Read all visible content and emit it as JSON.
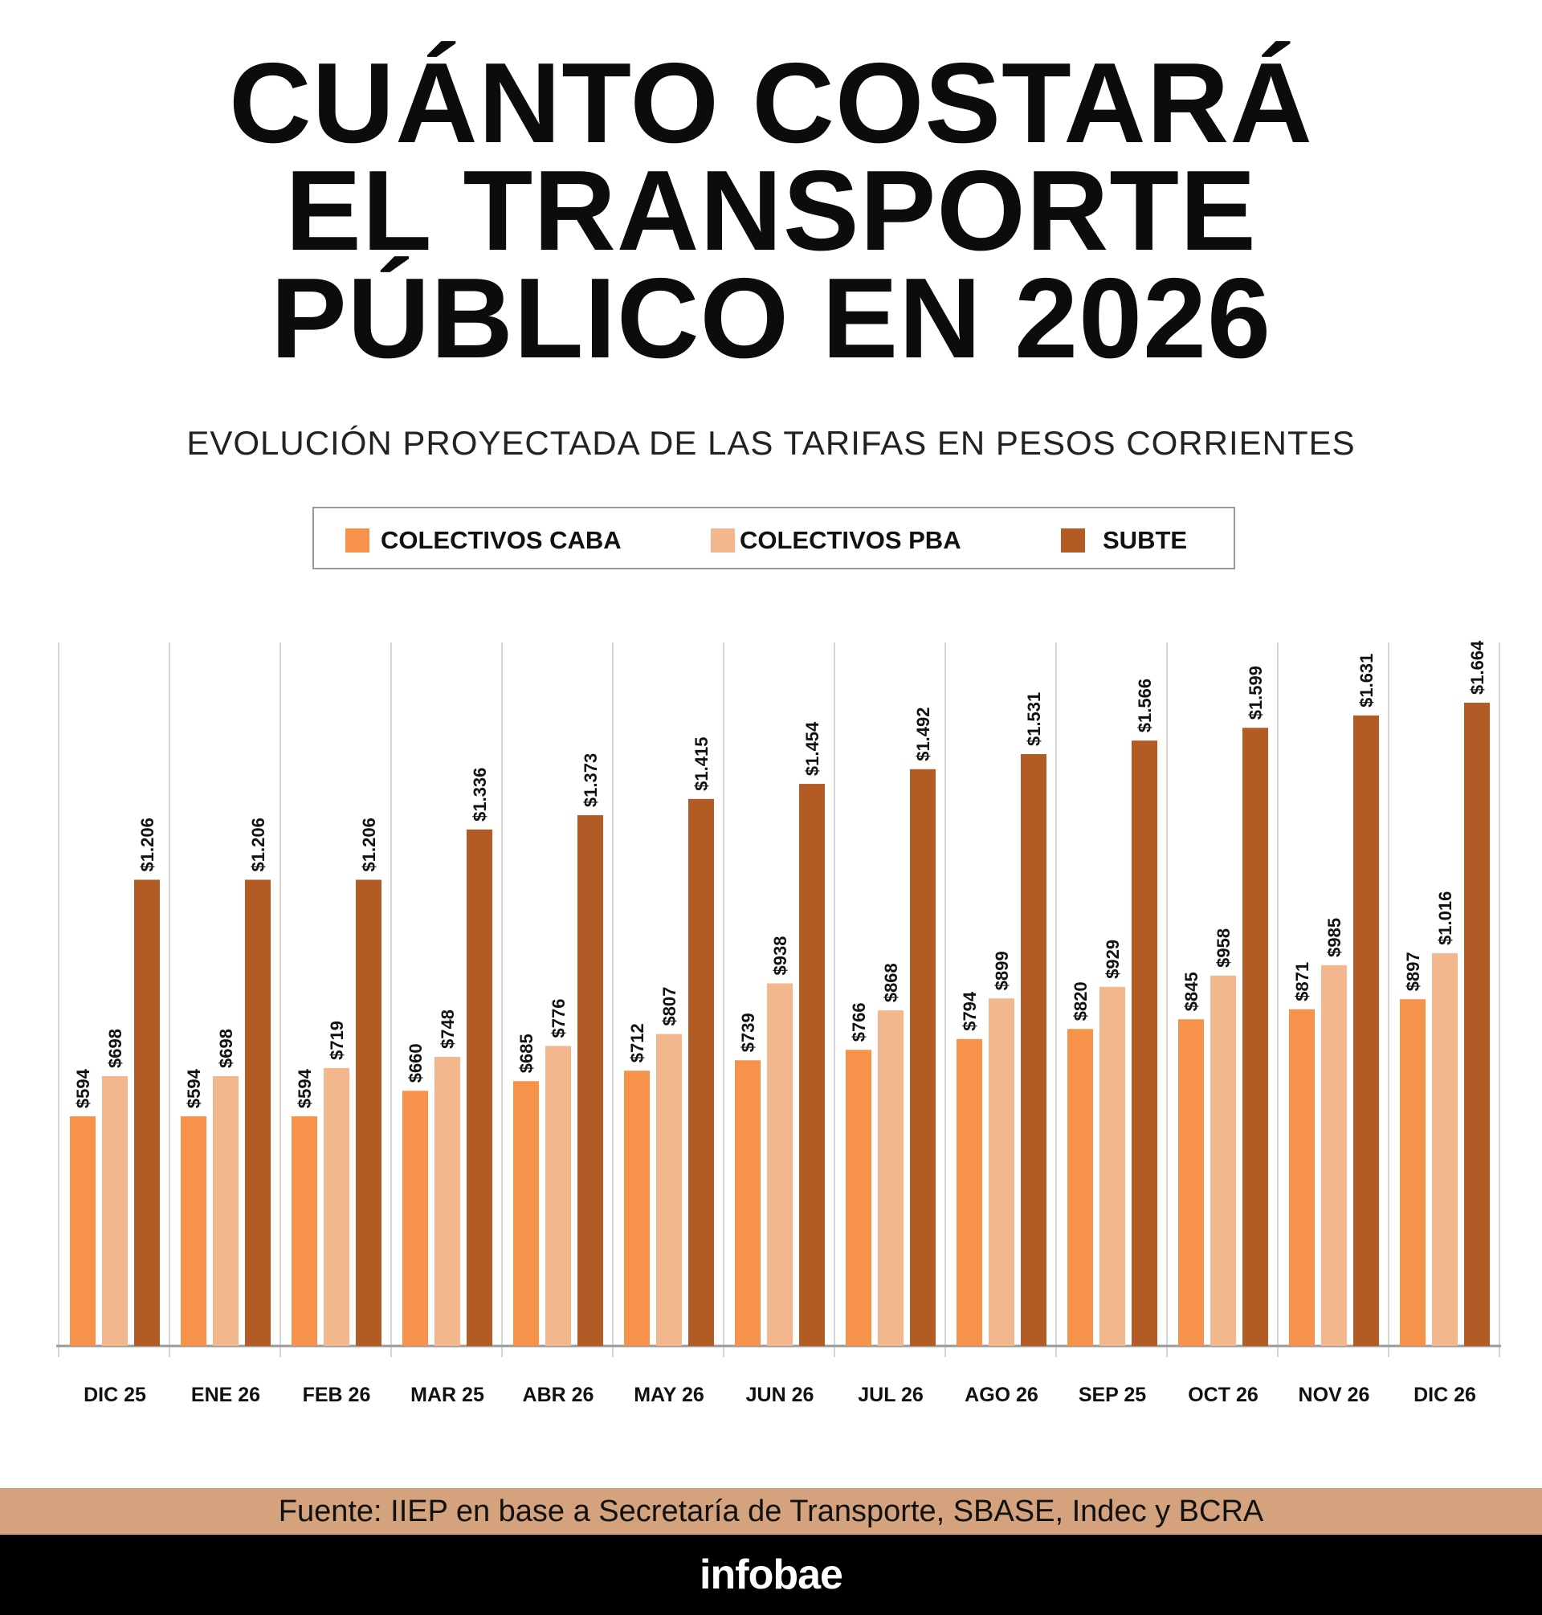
{
  "title_lines": [
    "CUÁNTO COSTARÁ",
    "EL TRANSPORTE",
    "PÚBLICO EN 2026"
  ],
  "subtitle": "EVOLUCIÓN PROYECTADA DE LAS TARIFAS EN PESOS CORRIENTES",
  "source": "Fuente:  IIEP en base a Secretaría de Transporte, SBASE, Indec y BCRA",
  "logo": "infobae",
  "colors": {
    "caba": "#f7924a",
    "pba": "#f2b78c",
    "subte": "#b25b24",
    "source_band": "#d4a37d"
  },
  "chart_data": {
    "type": "bar",
    "title": "CUÁNTO COSTARÁ EL TRANSPORTE PÚBLICO EN 2026",
    "subtitle": "EVOLUCIÓN PROYECTADA DE LAS TARIFAS EN PESOS CORRIENTES",
    "categories": [
      "DIC 25",
      "ENE 26",
      "FEB 26",
      "MAR 25",
      "ABR 26",
      "MAY 26",
      "JUN 26",
      "JUL 26",
      "AGO 26",
      "SEP 25",
      "OCT 26",
      "NOV 26",
      "DIC 26"
    ],
    "series": [
      {
        "name": "COLECTIVOS CABA",
        "values": [
          594,
          594,
          594,
          660,
          685,
          712,
          739,
          766,
          794,
          820,
          845,
          871,
          897
        ],
        "labels": [
          "$594",
          "$594",
          "$594",
          "$660",
          "$685",
          "$712",
          "$739",
          "$766",
          "$794",
          "$820",
          "$845",
          "$871",
          "$897"
        ]
      },
      {
        "name": "COLECTIVOS PBA",
        "values": [
          698,
          698,
          719,
          748,
          776,
          807,
          938,
          868,
          899,
          929,
          958,
          985,
          1016
        ],
        "labels": [
          "$698",
          "$698",
          "$719",
          "$748",
          "$776",
          "$807",
          "$938",
          "$868",
          "$899",
          "$929",
          "$958",
          "$985",
          "$1.016"
        ]
      },
      {
        "name": "SUBTE",
        "values": [
          1206,
          1206,
          1206,
          1336,
          1373,
          1415,
          1454,
          1492,
          1531,
          1566,
          1599,
          1631,
          1664
        ],
        "labels": [
          "$1.206",
          "$1.206",
          "$1.206",
          "$1.336",
          "$1.373",
          "$1.415",
          "$1.454",
          "$1.492",
          "$1.531",
          "$1.566",
          "$1.599",
          "$1.631",
          "$1.664"
        ]
      }
    ],
    "xlabel": "",
    "ylabel": "",
    "ylim": [
      0,
      1664
    ],
    "grid": "vertical separators between categories",
    "legend": "top"
  }
}
